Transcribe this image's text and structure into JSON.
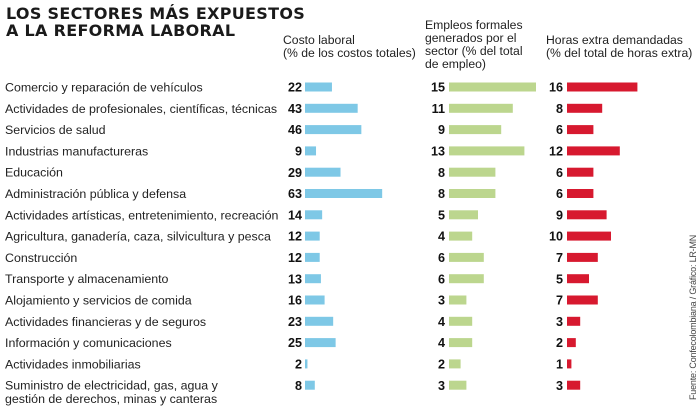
{
  "chart_data": {
    "type": "bar",
    "title": "LOS SECTORES MÁS EXPUESTOS A LA REFORMA LABORAL",
    "source": "Fuente: Confecolombiana / Gráfico: LR-MN",
    "categories": [
      "Comercio y reparación de vehículos",
      "Actividades de profesionales, científicas, técnicas",
      "Servicios de salud",
      "Industrias manufactureras",
      "Educación",
      "Administración pública y defensa",
      "Actividades artísticas, entretenimiento, recreación",
      "Agricultura, ganadería, caza, silvicultura y pesca",
      "Construcción",
      "Transporte y almacenamiento",
      "Alojamiento y servicios de comida",
      "Actividades financieras y de seguros",
      "Información y comunicaciones",
      "Actividades inmobiliarias",
      [
        "Suministro de electricidad, gas, agua y",
        "gestión de derechos, minas y canteras"
      ]
    ],
    "series": [
      {
        "name": "Costo laboral (% de los costos totales)",
        "color": "#7ec8e6",
        "values": [
          22,
          43,
          46,
          9,
          29,
          63,
          14,
          12,
          12,
          13,
          16,
          23,
          25,
          2,
          8
        ]
      },
      {
        "name": "Empleos formales generados por el sector (% del total de empleo)",
        "color": "#bcd68e",
        "values": [
          15,
          11,
          9,
          13,
          8,
          8,
          5,
          4,
          6,
          6,
          3,
          4,
          4,
          2,
          3
        ]
      },
      {
        "name": "Horas extra demandadas (% del total de horas extra)",
        "color": "#d7192f",
        "values": [
          16,
          8,
          6,
          12,
          6,
          6,
          9,
          10,
          7,
          5,
          7,
          3,
          2,
          1,
          3
        ]
      }
    ],
    "headers": [
      [
        "Costo laboral",
        "(% de los costos totales)"
      ],
      [
        "Empleos formales",
        "generados por el",
        "sector (% del total",
        "de empleo)"
      ],
      [
        "Horas extra demandadas",
        "(% del total de horas extra)"
      ]
    ],
    "grid": false,
    "legend": "column headers"
  }
}
